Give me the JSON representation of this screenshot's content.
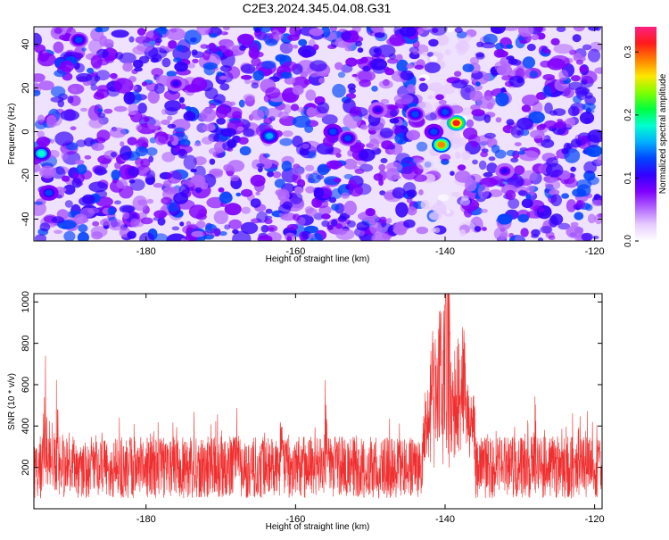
{
  "title": "C2E3.2024.345.04.08.G31",
  "chart_data": [
    {
      "type": "heatmap",
      "xlabel": "Height of straight line (km)",
      "ylabel": "Frequency (Hz)",
      "xlim": [
        -195,
        -119
      ],
      "ylim": [
        -50,
        48
      ],
      "xticks": [
        -180,
        -160,
        -140,
        -120
      ],
      "yticks": [
        -40,
        -20,
        0,
        20,
        40
      ],
      "colorbar": {
        "label": "Normalized spectral amplitude",
        "range": [
          0,
          0.34
        ],
        "ticks": [
          0.0,
          0.1,
          0.2,
          0.3
        ],
        "colormap": [
          "#ffffff",
          "#e6ccff",
          "#b266ff",
          "#8000ff",
          "#3300ff",
          "#0044ff",
          "#00b0ff",
          "#00ffd0",
          "#00ff40",
          "#80ff00",
          "#ffe600",
          "#ff8000",
          "#ff1a1a",
          "#ff2080"
        ]
      },
      "hotspots": [
        {
          "x": -138.5,
          "y": 4,
          "amplitude": 0.32
        },
        {
          "x": -140.5,
          "y": -6,
          "amplitude": 0.3
        },
        {
          "x": -141.5,
          "y": 0,
          "amplitude": 0.14
        },
        {
          "x": -194,
          "y": -10,
          "amplitude": 0.18
        },
        {
          "x": -193,
          "y": -28,
          "amplitude": 0.14
        },
        {
          "x": -189,
          "y": 42,
          "amplitude": 0.12
        },
        {
          "x": -163.5,
          "y": -2,
          "amplitude": 0.15
        },
        {
          "x": -155,
          "y": 0,
          "amplitude": 0.14
        },
        {
          "x": -153,
          "y": -3,
          "amplitude": 0.13
        },
        {
          "x": -144,
          "y": 8,
          "amplitude": 0.12
        },
        {
          "x": -140,
          "y": 9,
          "amplitude": 0.13
        },
        {
          "x": -176,
          "y": 22,
          "amplitude": 0.1
        },
        {
          "x": -149,
          "y": 10,
          "amplitude": 0.1
        },
        {
          "x": -132,
          "y": -18,
          "amplitude": 0.1
        }
      ],
      "quiet_band_x": [
        -143,
        -137
      ]
    },
    {
      "type": "line",
      "xlabel": "Height of straight line (km)",
      "ylabel": "SNR (10 * v/v)",
      "xlim": [
        -195,
        -119
      ],
      "ylim": [
        0,
        1040
      ],
      "xticks": [
        -180,
        -160,
        -140,
        -120
      ],
      "yticks": [
        200,
        400,
        600,
        800,
        1000
      ],
      "color": "#f03030",
      "baseline": {
        "mean": 200,
        "spread": 150
      },
      "peaks": [
        {
          "x": -140,
          "y": 1040
        },
        {
          "x": -139.5,
          "y": 1000
        },
        {
          "x": -140.8,
          "y": 900
        },
        {
          "x": -138.5,
          "y": 760
        },
        {
          "x": -141.5,
          "y": 840
        },
        {
          "x": -137.5,
          "y": 680
        },
        {
          "x": -192,
          "y": 620
        },
        {
          "x": -193.5,
          "y": 560
        },
        {
          "x": -162,
          "y": 520
        },
        {
          "x": -168,
          "y": 480
        },
        {
          "x": -156,
          "y": 490
        },
        {
          "x": -122,
          "y": 520
        },
        {
          "x": -128,
          "y": 470
        }
      ]
    }
  ]
}
